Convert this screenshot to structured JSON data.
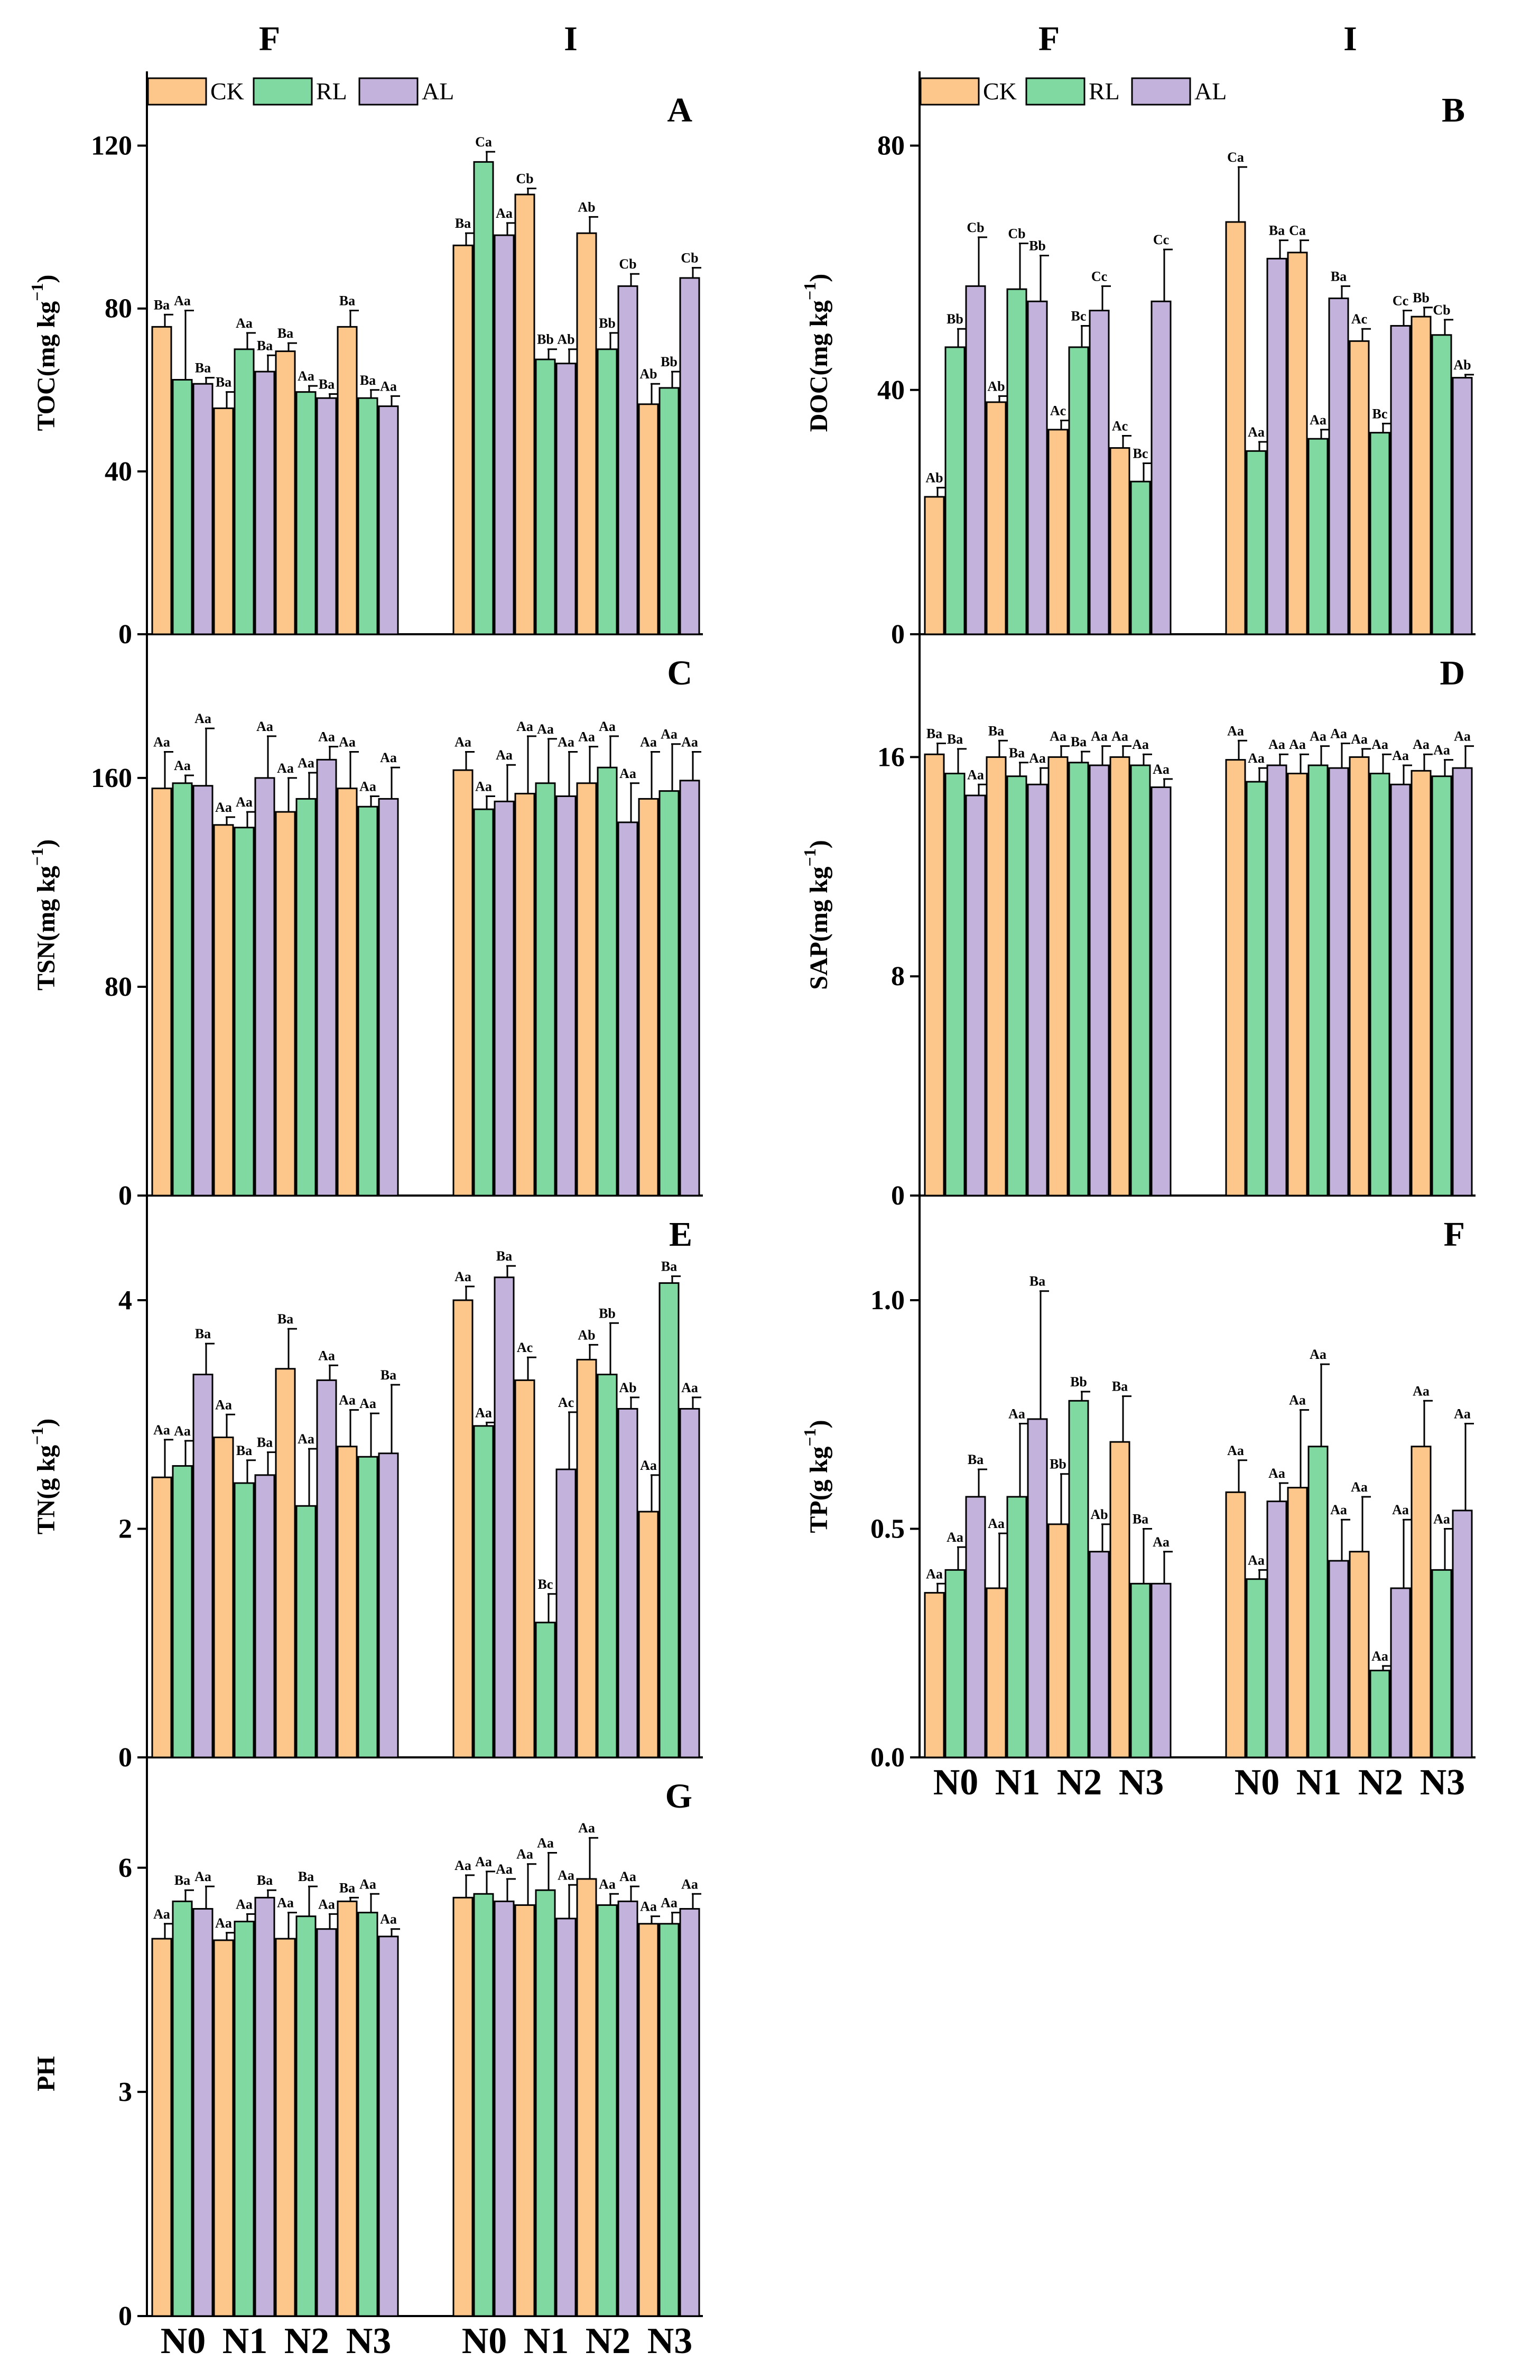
{
  "figure": {
    "group_labels": [
      "F",
      "I"
    ],
    "x_categories": [
      "N0",
      "N1",
      "N2",
      "N3"
    ],
    "legend": [
      {
        "name": "CK",
        "color": "#FDC68A"
      },
      {
        "name": "RL",
        "color": "#7FD9A1"
      },
      {
        "name": "AL",
        "color": "#C3B2DC"
      }
    ]
  },
  "chart_data": [
    {
      "type": "bar",
      "panel": "A",
      "ylabel": "TOC(mg kg",
      "ylabel_sup": "−1",
      "ylabel_end": ")",
      "ylim": [
        0,
        135
      ],
      "yticks": [
        0,
        40,
        80,
        120
      ],
      "tick_labels": [
        "0",
        "40",
        "80",
        "120"
      ],
      "groups": [
        "F",
        "I"
      ],
      "categories": [
        "N0",
        "N1",
        "N2",
        "N3"
      ],
      "series": [
        {
          "name": "CK",
          "F": [
            75.5,
            55.5,
            69.5,
            75.5
          ],
          "F_err": [
            3,
            4,
            2,
            4
          ],
          "I": [
            95.5,
            108,
            98.5,
            56.5
          ],
          "I_err": [
            3,
            1.5,
            4,
            5
          ],
          "F_sig": [
            "Ba",
            "Ba",
            "Ba",
            "Ba"
          ],
          "I_sig": [
            "Ba",
            "Cb",
            "Ab",
            "Ab"
          ]
        },
        {
          "name": "RL",
          "F": [
            62.5,
            70,
            59.5,
            58
          ],
          "F_err": [
            17,
            4,
            1.5,
            2
          ],
          "I": [
            116,
            67.5,
            70,
            60.5
          ],
          "I_err": [
            2.5,
            2.5,
            4,
            4
          ],
          "F_sig": [
            "Aa",
            "Aa",
            "Aa",
            "Ba"
          ],
          "I_sig": [
            "Ca",
            "Bb",
            "Bb",
            "Bb"
          ]
        },
        {
          "name": "AL",
          "F": [
            61.5,
            64.5,
            58,
            56
          ],
          "F_err": [
            1.5,
            4,
            1,
            2.5
          ],
          "I": [
            98,
            66.5,
            85.5,
            87.5
          ],
          "I_err": [
            3,
            3.5,
            3,
            2.5
          ],
          "F_sig": [
            "Ba",
            "Ba",
            "Ba",
            "Aa"
          ],
          "I_sig": [
            "Aa",
            "Ab",
            "Cb",
            "Cb"
          ]
        }
      ]
    },
    {
      "type": "bar",
      "panel": "B",
      "ylabel": "DOC(mg kg",
      "ylabel_sup": "−1",
      "ylabel_end": ")",
      "ylim": [
        0,
        90
      ],
      "yticks": [
        0,
        40,
        80
      ],
      "tick_labels": [
        "0",
        "40",
        "80"
      ],
      "groups": [
        "F",
        "I"
      ],
      "categories": [
        "N0",
        "N1",
        "N2",
        "N3"
      ],
      "series": [
        {
          "name": "CK",
          "F": [
            22.5,
            38,
            33.5,
            30.5
          ],
          "F_err": [
            1.5,
            1,
            1.5,
            2
          ],
          "I": [
            67.5,
            62.5,
            48,
            52
          ],
          "I_err": [
            9,
            2,
            2,
            1.5
          ],
          "F_sig": [
            "Ab",
            "Ab",
            "Ac",
            "Ac"
          ],
          "I_sig": [
            "Ca",
            "Ca",
            "Ac",
            "Bb"
          ]
        },
        {
          "name": "RL",
          "F": [
            47,
            56.5,
            47,
            25
          ],
          "F_err": [
            3,
            7.5,
            3.5,
            3
          ],
          "I": [
            30,
            32,
            33,
            49
          ],
          "I_err": [
            1.5,
            1.5,
            1.5,
            2.5
          ],
          "F_sig": [
            "Bb",
            "Cb",
            "Bc",
            "Bc"
          ],
          "I_sig": [
            "Aa",
            "Aa",
            "Bc",
            "Cb"
          ]
        },
        {
          "name": "AL",
          "F": [
            57,
            54.5,
            53,
            54.5
          ],
          "F_err": [
            8,
            7.5,
            4,
            8.5
          ],
          "I": [
            61.5,
            55,
            50.5,
            42
          ],
          "I_err": [
            3,
            2,
            2.5,
            0.5
          ],
          "F_sig": [
            "Cb",
            "Bb",
            "Cc",
            "Cc"
          ],
          "I_sig": [
            "Ba",
            "Ba",
            "Cc",
            "Ab"
          ]
        }
      ]
    },
    {
      "type": "bar",
      "panel": "C",
      "ylabel": "TSN(mg kg",
      "ylabel_sup": "−1",
      "ylabel_end": ")",
      "ylim": [
        0,
        210
      ],
      "yticks": [
        0,
        80,
        160
      ],
      "tick_labels": [
        "0",
        "80",
        "160"
      ],
      "groups": [
        "F",
        "I"
      ],
      "categories": [
        "N0",
        "N1",
        "N2",
        "N3"
      ],
      "series": [
        {
          "name": "CK",
          "F": [
            156,
            142,
            147,
            156
          ],
          "F_err": [
            14,
            3,
            13,
            14
          ],
          "I": [
            163,
            154,
            158,
            152
          ],
          "I_err": [
            7,
            22,
            14,
            18
          ],
          "F_sig": [
            "Aa",
            "Aa",
            "Aa",
            "Aa"
          ],
          "I_sig": [
            "Aa",
            "Aa",
            "Aa",
            "Aa"
          ]
        },
        {
          "name": "RL",
          "F": [
            158,
            141,
            152,
            149
          ],
          "F_err": [
            3,
            6,
            10,
            4
          ],
          "I": [
            148,
            158,
            164,
            155
          ],
          "I_err": [
            5,
            17,
            12,
            18
          ],
          "F_sig": [
            "Aa",
            "Aa",
            "Aa",
            "Aa"
          ],
          "I_sig": [
            "Aa",
            "Aa",
            "Aa",
            "Aa"
          ]
        },
        {
          "name": "AL",
          "F": [
            157,
            160,
            167,
            152
          ],
          "F_err": [
            22,
            16,
            5,
            12
          ],
          "I": [
            151,
            153,
            143,
            159
          ],
          "I_err": [
            14,
            17,
            15,
            11
          ],
          "F_sig": [
            "Aa",
            "Aa",
            "Aa",
            "Aa"
          ],
          "I_sig": [
            "Aa",
            "Aa",
            "Aa",
            "Aa"
          ]
        }
      ]
    },
    {
      "type": "bar",
      "panel": "D",
      "ylabel": "SAP(mg kg",
      "ylabel_sup": "−1",
      "ylabel_end": ")",
      "ylim": [
        0,
        20
      ],
      "yticks": [
        0,
        8,
        16
      ],
      "tick_labels": [
        "0",
        "8",
        "16"
      ],
      "groups": [
        "F",
        "I"
      ],
      "categories": [
        "N0",
        "N1",
        "N2",
        "N3"
      ],
      "series": [
        {
          "name": "CK",
          "F": [
            16.1,
            16,
            16,
            16
          ],
          "F_err": [
            0.4,
            0.6,
            0.4,
            0.4
          ],
          "I": [
            15.9,
            15.4,
            16,
            15.5
          ],
          "I_err": [
            0.7,
            0.7,
            0.3,
            0.6
          ],
          "F_sig": [
            "Ba",
            "Ba",
            "Aa",
            "Aa"
          ],
          "I_sig": [
            "Aa",
            "Aa",
            "Aa",
            "Aa"
          ]
        },
        {
          "name": "RL",
          "F": [
            15.4,
            15.3,
            15.8,
            15.7
          ],
          "F_err": [
            0.9,
            0.5,
            0.4,
            0.4
          ],
          "I": [
            15.1,
            15.7,
            15.4,
            15.3
          ],
          "I_err": [
            0.5,
            0.7,
            0.7,
            0.6
          ],
          "F_sig": [
            "Ba",
            "Ba",
            "Ba",
            "Aa"
          ],
          "I_sig": [
            "Aa",
            "Aa",
            "Aa",
            "Aa"
          ]
        },
        {
          "name": "AL",
          "F": [
            14.6,
            15,
            15.7,
            14.9
          ],
          "F_err": [
            0.4,
            0.6,
            0.7,
            0.3
          ],
          "I": [
            15.7,
            15.6,
            15,
            15.6
          ],
          "I_err": [
            0.4,
            0.9,
            0.7,
            0.8
          ],
          "F_sig": [
            "Aa",
            "Aa",
            "Aa",
            "Aa"
          ],
          "I_sig": [
            "Aa",
            "Aa",
            "Aa",
            "Aa"
          ]
        }
      ]
    },
    {
      "type": "bar",
      "panel": "E",
      "ylabel": "TN(g kg",
      "ylabel_sup": "−1",
      "ylabel_end": ")",
      "ylim": [
        0,
        4.8
      ],
      "yticks": [
        0,
        2,
        4
      ],
      "tick_labels": [
        "0",
        "2",
        "4"
      ],
      "groups": [
        "F",
        "I"
      ],
      "categories": [
        "N0",
        "N1",
        "N2",
        "N3"
      ],
      "series": [
        {
          "name": "CK",
          "F": [
            2.45,
            2.8,
            3.4,
            2.72
          ],
          "F_err": [
            0.33,
            0.2,
            0.35,
            0.32
          ],
          "I": [
            4,
            3.3,
            3.48,
            2.15
          ],
          "I_err": [
            0.12,
            0.2,
            0.13,
            0.32
          ],
          "F_sig": [
            "Aa",
            "Aa",
            "Ba",
            "Aa"
          ],
          "I_sig": [
            "Aa",
            "Ac",
            "Ab",
            "Aa"
          ]
        },
        {
          "name": "RL",
          "F": [
            2.55,
            2.4,
            2.2,
            2.63
          ],
          "F_err": [
            0.22,
            0.2,
            0.5,
            0.38
          ],
          "I": [
            2.9,
            1.18,
            3.35,
            4.15
          ],
          "I_err": [
            0.03,
            0.25,
            0.45,
            0.06
          ],
          "F_sig": [
            "Aa",
            "Ba",
            "Aa",
            "Aa"
          ],
          "I_sig": [
            "Aa",
            "Bc",
            "Bb",
            "Ba"
          ]
        },
        {
          "name": "AL",
          "F": [
            3.35,
            2.47,
            3.3,
            2.66
          ],
          "F_err": [
            0.27,
            0.2,
            0.13,
            0.6
          ],
          "I": [
            4.2,
            2.52,
            3.05,
            3.05
          ],
          "I_err": [
            0.1,
            0.5,
            0.1,
            0.1
          ],
          "F_sig": [
            "Ba",
            "Ba",
            "Aa",
            "Ba"
          ],
          "I_sig": [
            "Ba",
            "Ac",
            "Ab",
            "Aa"
          ]
        }
      ]
    },
    {
      "type": "bar",
      "panel": "F",
      "ylabel": "TP(g kg",
      "ylabel_sup": "−1",
      "ylabel_end": ")",
      "ylim": [
        0,
        1.2
      ],
      "yticks": [
        0,
        0.5,
        1.0
      ],
      "tick_labels": [
        "0.0",
        "0.5",
        "1.0"
      ],
      "groups": [
        "F",
        "I"
      ],
      "categories": [
        "N0",
        "N1",
        "N2",
        "N3"
      ],
      "series": [
        {
          "name": "CK",
          "F": [
            0.36,
            0.37,
            0.51,
            0.69
          ],
          "F_err": [
            0.02,
            0.12,
            0.11,
            0.1
          ],
          "I": [
            0.58,
            0.59,
            0.45,
            0.68
          ],
          "I_err": [
            0.07,
            0.17,
            0.12,
            0.1
          ],
          "F_sig": [
            "Aa",
            "Aa",
            "Bb",
            "Ba"
          ],
          "I_sig": [
            "Aa",
            "Aa",
            "Aa",
            "Aa"
          ]
        },
        {
          "name": "RL",
          "F": [
            0.41,
            0.57,
            0.78,
            0.38
          ],
          "F_err": [
            0.05,
            0.16,
            0.02,
            0.12
          ],
          "I": [
            0.39,
            0.68,
            0.19,
            0.41
          ],
          "I_err": [
            0.02,
            0.18,
            0.01,
            0.09
          ],
          "F_sig": [
            "Aa",
            "Aa",
            "Bb",
            "Ba"
          ],
          "I_sig": [
            "Aa",
            "Aa",
            "Aa",
            "Aa"
          ]
        },
        {
          "name": "AL",
          "F": [
            0.57,
            0.74,
            0.45,
            0.38
          ],
          "F_err": [
            0.06,
            0.28,
            0.06,
            0.07
          ],
          "I": [
            0.56,
            0.43,
            0.37,
            0.54
          ],
          "I_err": [
            0.04,
            0.09,
            0.15,
            0.19
          ],
          "F_sig": [
            "Ba",
            "Ba",
            "Ab",
            "Aa"
          ],
          "I_sig": [
            "Aa",
            "Aa",
            "Aa",
            "Aa"
          ]
        }
      ]
    },
    {
      "type": "bar",
      "panel": "G",
      "ylabel": "PH",
      "ylabel_sup": "",
      "ylabel_end": "",
      "ylim": [
        0,
        7.3
      ],
      "yticks": [
        0,
        3,
        6
      ],
      "tick_labels": [
        "0",
        "3",
        "6"
      ],
      "groups": [
        "F",
        "I"
      ],
      "categories": [
        "N0",
        "N1",
        "N2",
        "N3"
      ],
      "series": [
        {
          "name": "CK",
          "F": [
            5.05,
            5.03,
            5.05,
            5.55
          ],
          "F_err": [
            0.2,
            0.1,
            0.35,
            0.05
          ],
          "I": [
            5.6,
            5.5,
            5.85,
            5.25
          ],
          "I_err": [
            0.3,
            0.55,
            0.55,
            0.1
          ],
          "F_sig": [
            "Aa",
            "Aa",
            "Aa",
            "Ba"
          ],
          "I_sig": [
            "Aa",
            "Aa",
            "Aa",
            "Aa"
          ]
        },
        {
          "name": "RL",
          "F": [
            5.55,
            5.28,
            5.35,
            5.4
          ],
          "F_err": [
            0.15,
            0.1,
            0.4,
            0.25
          ],
          "I": [
            5.65,
            5.7,
            5.5,
            5.25
          ],
          "I_err": [
            0.3,
            0.5,
            0.15,
            0.15
          ],
          "F_sig": [
            "Ba",
            "Aa",
            "Ba",
            "Aa"
          ],
          "I_sig": [
            "Aa",
            "Aa",
            "Aa",
            "Aa"
          ]
        },
        {
          "name": "AL",
          "F": [
            5.45,
            5.6,
            5.18,
            5.08
          ],
          "F_err": [
            0.3,
            0.1,
            0.2,
            0.1
          ],
          "I": [
            5.55,
            5.32,
            5.55,
            5.45
          ],
          "I_err": [
            0.3,
            0.45,
            0.2,
            0.2
          ],
          "F_sig": [
            "Aa",
            "Ba",
            "Aa",
            "Aa"
          ],
          "I_sig": [
            "Aa",
            "Aa",
            "Aa",
            "Aa"
          ]
        }
      ]
    }
  ]
}
